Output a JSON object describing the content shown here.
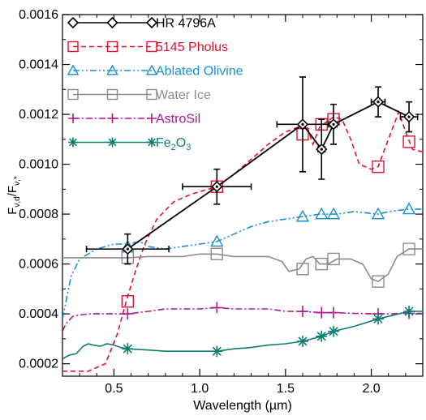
{
  "chart_data": {
    "type": "line",
    "title": "",
    "xlabel": "Wavelength (µm)",
    "ylabel": "F_ν,d / F_ν,*",
    "xlim": [
      0.2,
      2.3
    ],
    "ylim": [
      0.00015,
      0.0016
    ],
    "x_ticks": [
      0.5,
      1.0,
      1.5,
      2.0
    ],
    "x_tick_labels": [
      "0.5",
      "1.0",
      "1.5",
      "2.0"
    ],
    "y_ticks": [
      0.0002,
      0.0004,
      0.0006,
      0.0008,
      0.001,
      0.0012,
      0.0014,
      0.0016
    ],
    "y_tick_labels": [
      "0.0002",
      "0.0004",
      "0.0006",
      "0.0008",
      "0.0010",
      "0.0012",
      "0.0014",
      "0.0016"
    ],
    "grid": false,
    "legend_position": "top-left",
    "observed": {
      "name": "HR 4796A",
      "color": "#000000",
      "marker": "diamond",
      "points": [
        {
          "x": 0.58,
          "y": 0.00066,
          "xerr": 0.24,
          "yerr": 6e-05
        },
        {
          "x": 1.1,
          "y": 0.00091,
          "xerr": 0.2,
          "yerr": 7e-05
        },
        {
          "x": 1.6,
          "y": 0.00116,
          "xerr": 0.15,
          "yerr": 0.00019
        },
        {
          "x": 1.71,
          "y": 0.00106,
          "xerr": 0.02,
          "yerr": 0.00012
        },
        {
          "x": 1.78,
          "y": 0.00116,
          "xerr": 0.02,
          "yerr": 8e-05
        },
        {
          "x": 2.04,
          "y": 0.00125,
          "xerr": 0.04,
          "yerr": 6e-05
        },
        {
          "x": 2.22,
          "y": 0.00119,
          "xerr": 0.05,
          "yerr": 6e-05
        }
      ]
    },
    "series": [
      {
        "name": "5145 Pholus",
        "color": "#e0102f",
        "dash": "6,4",
        "marker": "square",
        "curve_x": [
          0.2,
          0.35,
          0.45,
          0.52,
          0.58,
          0.63,
          0.68,
          0.75,
          0.85,
          0.95,
          1.05,
          1.1,
          1.2,
          1.3,
          1.4,
          1.5,
          1.58,
          1.62,
          1.66,
          1.7,
          1.74,
          1.78,
          1.83,
          1.88,
          1.93,
          2.0,
          2.04,
          2.1,
          2.16,
          2.2,
          2.24,
          2.3
        ],
        "curve_y": [
          0.00017,
          0.00017,
          0.0002,
          0.00032,
          0.00047,
          0.00058,
          0.00068,
          0.00078,
          0.00085,
          0.00088,
          0.0009,
          0.00091,
          0.00096,
          0.00102,
          0.00108,
          0.00113,
          0.00115,
          0.00116,
          0.00108,
          0.00115,
          0.00117,
          0.00119,
          0.00118,
          0.0011,
          0.001,
          0.00098,
          0.00099,
          0.0011,
          0.00121,
          0.00113,
          0.00106,
          0.00105
        ],
        "x": [
          0.58,
          1.1,
          1.6,
          1.71,
          1.78,
          2.04,
          2.22
        ],
        "values": [
          0.00045,
          0.00091,
          0.00112,
          0.00116,
          0.00118,
          0.00099,
          0.00109
        ]
      },
      {
        "name": "Ablated Olivine",
        "color": "#1a8fcf",
        "dash": "8,3,2,3,2,3",
        "marker": "triangle",
        "curve_x": [
          0.2,
          0.25,
          0.3,
          0.35,
          0.4,
          0.45,
          0.5,
          0.55,
          0.58,
          0.65,
          0.7,
          0.8,
          0.9,
          1.0,
          1.1,
          1.2,
          1.3,
          1.4,
          1.5,
          1.6,
          1.7,
          1.8,
          1.9,
          2.04,
          2.1,
          2.22,
          2.3
        ],
        "curve_y": [
          0.00038,
          0.00055,
          0.00062,
          0.00064,
          0.00066,
          0.00067,
          0.00068,
          0.00068,
          0.00068,
          0.00069,
          0.00067,
          0.00066,
          0.00067,
          0.00068,
          0.00069,
          0.00072,
          0.00075,
          0.00077,
          0.00078,
          0.00079,
          0.0008,
          0.0008,
          0.00081,
          0.0008,
          0.00081,
          0.00082,
          0.00082
        ],
        "x": [
          0.58,
          1.1,
          1.6,
          1.71,
          1.78,
          2.04,
          2.22
        ],
        "values": [
          0.00067,
          0.00069,
          0.00079,
          0.0008,
          0.0008,
          0.0008,
          0.00082
        ]
      },
      {
        "name": "Water Ice",
        "color": "#8c8c8c",
        "dash": "",
        "marker": "square",
        "curve_x": [
          0.2,
          0.4,
          0.58,
          0.7,
          0.8,
          0.9,
          1.0,
          1.1,
          1.2,
          1.3,
          1.4,
          1.48,
          1.52,
          1.58,
          1.62,
          1.66,
          1.7,
          1.75,
          1.8,
          1.88,
          1.95,
          2.0,
          2.04,
          2.1,
          2.15,
          2.22,
          2.3
        ],
        "curve_y": [
          0.000625,
          0.000625,
          0.000625,
          0.00063,
          0.00063,
          0.00063,
          0.00064,
          0.00064,
          0.00063,
          0.00063,
          0.00063,
          0.00061,
          0.00057,
          0.00058,
          0.00062,
          0.00063,
          0.0006,
          0.0006,
          0.00062,
          0.00062,
          0.0006,
          0.00054,
          0.00053,
          0.00056,
          0.00063,
          0.00066,
          0.00066
        ],
        "x": [
          0.58,
          1.1,
          1.6,
          1.71,
          1.78,
          2.04,
          2.22
        ],
        "values": [
          0.000625,
          0.00064,
          0.00058,
          0.0006,
          0.00062,
          0.00053,
          0.00066
        ]
      },
      {
        "name": "AstroSil",
        "color": "#b0168e",
        "dash": "8,3,2,3",
        "marker": "plus",
        "curve_x": [
          0.2,
          0.22,
          0.26,
          0.3,
          0.35,
          0.4,
          0.5,
          0.58,
          0.7,
          0.8,
          0.9,
          1.0,
          1.1,
          1.2,
          1.3,
          1.4,
          1.5,
          1.6,
          1.71,
          1.78,
          1.9,
          2.04,
          2.1,
          2.22,
          2.3
        ],
        "curve_y": [
          0.00033,
          0.00036,
          0.00039,
          0.000395,
          0.0004,
          0.0004,
          0.0004,
          0.0004,
          0.00041,
          0.00042,
          0.00042,
          0.00042,
          0.000425,
          0.00042,
          0.00042,
          0.00042,
          0.00041,
          0.00041,
          0.000405,
          0.000405,
          0.000402,
          0.0004,
          0.0004,
          0.000402,
          0.000402
        ],
        "x": [
          0.58,
          1.1,
          1.6,
          1.71,
          1.78,
          2.04,
          2.22
        ],
        "values": [
          0.0004,
          0.000425,
          0.00041,
          0.000405,
          0.000405,
          0.0004,
          0.000402
        ]
      },
      {
        "name": "Fe₂O₃",
        "color": "#0f7d6e",
        "dash": "",
        "marker": "asterisk",
        "curve_x": [
          0.2,
          0.24,
          0.28,
          0.32,
          0.35,
          0.38,
          0.42,
          0.46,
          0.5,
          0.54,
          0.58,
          0.7,
          0.8,
          0.9,
          1.0,
          1.1,
          1.2,
          1.3,
          1.4,
          1.5,
          1.6,
          1.71,
          1.78,
          1.9,
          2.04,
          2.1,
          2.22,
          2.3
        ],
        "curve_y": [
          0.00022,
          0.000235,
          0.00024,
          0.00027,
          0.00028,
          0.000275,
          0.00027,
          0.00028,
          0.000275,
          0.000265,
          0.00026,
          0.000255,
          0.00025,
          0.00025,
          0.00025,
          0.00025,
          0.00026,
          0.000265,
          0.000275,
          0.00028,
          0.00029,
          0.00031,
          0.00033,
          0.00035,
          0.00038,
          0.00039,
          0.00041,
          0.00041
        ],
        "x": [
          0.58,
          1.1,
          1.6,
          1.71,
          1.78,
          2.04,
          2.22
        ],
        "values": [
          0.00026,
          0.00025,
          0.00029,
          0.00031,
          0.00033,
          0.00038,
          0.00041
        ]
      }
    ]
  }
}
